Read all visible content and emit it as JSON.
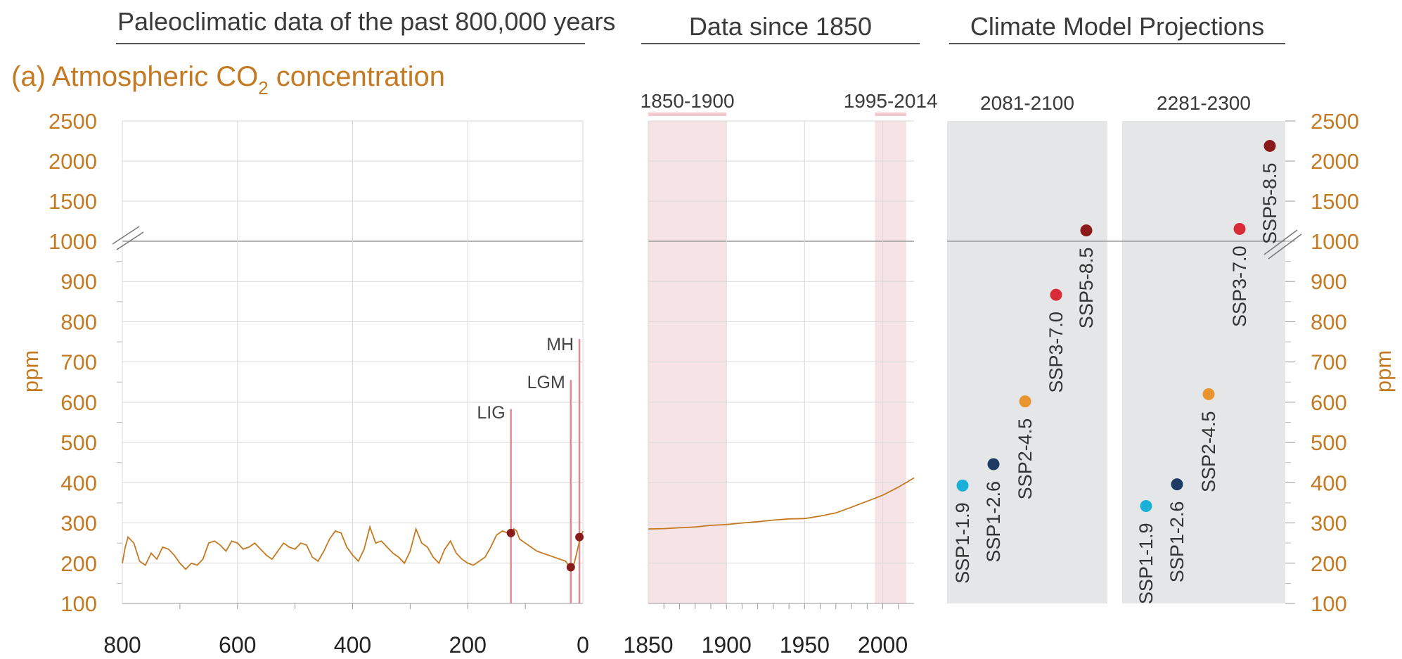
{
  "headers": {
    "paleo": "Paleoclimatic data of the past 800,000 years",
    "since1850": "Data since 1850",
    "projections": "Climate Model Projections"
  },
  "colors": {
    "accent": "#c47a22",
    "grid": "#d9d9d9",
    "shade": "#f6e3e5",
    "panel": "#e5e6e7",
    "event_line": "#e28a92",
    "dot_dark": "#8b1a1a"
  },
  "chart_data": [
    {
      "type": "line",
      "panel": "paleo",
      "title_main": "(a) Atmospheric CO",
      "title_sub": "2",
      "title_rest": " concentration",
      "ylabel": "ppm",
      "xlabel": "",
      "x_ticks": [
        "800",
        "600",
        "400",
        "200",
        "0"
      ],
      "y_ticks": [
        "100",
        "200",
        "300",
        "400",
        "500",
        "600",
        "700",
        "800",
        "900",
        "1000",
        "1500",
        "2000",
        "2500"
      ],
      "xlim": [
        800,
        0
      ],
      "ylim": [
        100,
        2500
      ],
      "y_break": 1000,
      "series": [
        {
          "x": [
            800,
            795,
            790,
            780,
            770,
            760,
            750,
            740,
            730,
            720,
            710,
            700,
            690,
            680,
            670,
            660,
            650,
            640,
            630,
            620,
            610,
            600,
            590,
            580,
            570,
            560,
            550,
            540,
            530,
            520,
            510,
            500,
            490,
            480,
            470,
            460,
            450,
            440,
            430,
            420,
            410,
            400,
            390,
            380,
            370,
            360,
            350,
            340,
            330,
            320,
            310,
            300,
            290,
            280,
            270,
            260,
            250,
            240,
            230,
            220,
            210,
            200,
            190,
            180,
            170,
            160,
            150,
            140,
            130,
            125,
            120,
            115,
            110,
            100,
            90,
            80,
            70,
            60,
            50,
            40,
            30,
            25,
            20,
            15,
            10,
            5,
            0
          ],
          "y": [
            200,
            240,
            265,
            250,
            205,
            195,
            225,
            210,
            240,
            235,
            220,
            200,
            185,
            200,
            195,
            210,
            250,
            255,
            245,
            230,
            255,
            250,
            235,
            240,
            250,
            235,
            220,
            210,
            230,
            250,
            240,
            235,
            250,
            245,
            215,
            205,
            230,
            260,
            280,
            275,
            240,
            220,
            205,
            235,
            290,
            250,
            255,
            240,
            225,
            215,
            200,
            230,
            285,
            250,
            240,
            215,
            200,
            235,
            255,
            225,
            210,
            200,
            195,
            205,
            215,
            240,
            270,
            280,
            275,
            265,
            285,
            280,
            260,
            250,
            240,
            230,
            225,
            220,
            215,
            210,
            205,
            195,
            190,
            200,
            230,
            260,
            280
          ]
        }
      ],
      "events": [
        {
          "label": "LIG",
          "x": 125,
          "y": 275
        },
        {
          "label": "LGM",
          "x": 21,
          "y": 190
        },
        {
          "label": "MH",
          "x": 6,
          "y": 265
        }
      ]
    },
    {
      "type": "line",
      "panel": "since1850",
      "x_ticks": [
        "1850",
        "1900",
        "1950",
        "2000"
      ],
      "xlim": [
        1850,
        2020
      ],
      "ylim": [
        100,
        2500
      ],
      "shaded_periods": [
        "1850-1900",
        "1995-2014"
      ],
      "series": [
        {
          "x": [
            1850,
            1860,
            1870,
            1880,
            1890,
            1900,
            1910,
            1920,
            1930,
            1940,
            1950,
            1960,
            1970,
            1980,
            1990,
            2000,
            2010,
            2020
          ],
          "y": [
            285,
            286,
            288,
            290,
            294,
            296,
            300,
            303,
            307,
            310,
            311,
            317,
            325,
            339,
            354,
            369,
            389,
            412
          ]
        }
      ]
    },
    {
      "type": "scatter",
      "panel": "projections",
      "ylabel": "ppm",
      "groups": [
        {
          "period": "2081-2100",
          "points": [
            {
              "scenario": "SSP1-1.9",
              "value": 393,
              "color": "#1bb0d8"
            },
            {
              "scenario": "SSP1-2.6",
              "value": 446,
              "color": "#1d3b63"
            },
            {
              "scenario": "SSP2-4.5",
              "value": 602,
              "color": "#e8952f"
            },
            {
              "scenario": "SSP3-7.0",
              "value": 867,
              "color": "#d92b36"
            },
            {
              "scenario": "SSP5-8.5",
              "value": 1135,
              "color": "#8b1a1a"
            }
          ]
        },
        {
          "period": "2281-2300",
          "points": [
            {
              "scenario": "SSP1-1.9",
              "value": 342,
              "color": "#1bb0d8"
            },
            {
              "scenario": "SSP1-2.6",
              "value": 396,
              "color": "#1d3b63"
            },
            {
              "scenario": "SSP2-4.5",
              "value": 620,
              "color": "#e8952f"
            },
            {
              "scenario": "SSP3-7.0",
              "value": 1154,
              "color": "#d92b36"
            },
            {
              "scenario": "SSP5-8.5",
              "value": 2189,
              "color": "#8b1a1a"
            }
          ]
        }
      ]
    }
  ]
}
